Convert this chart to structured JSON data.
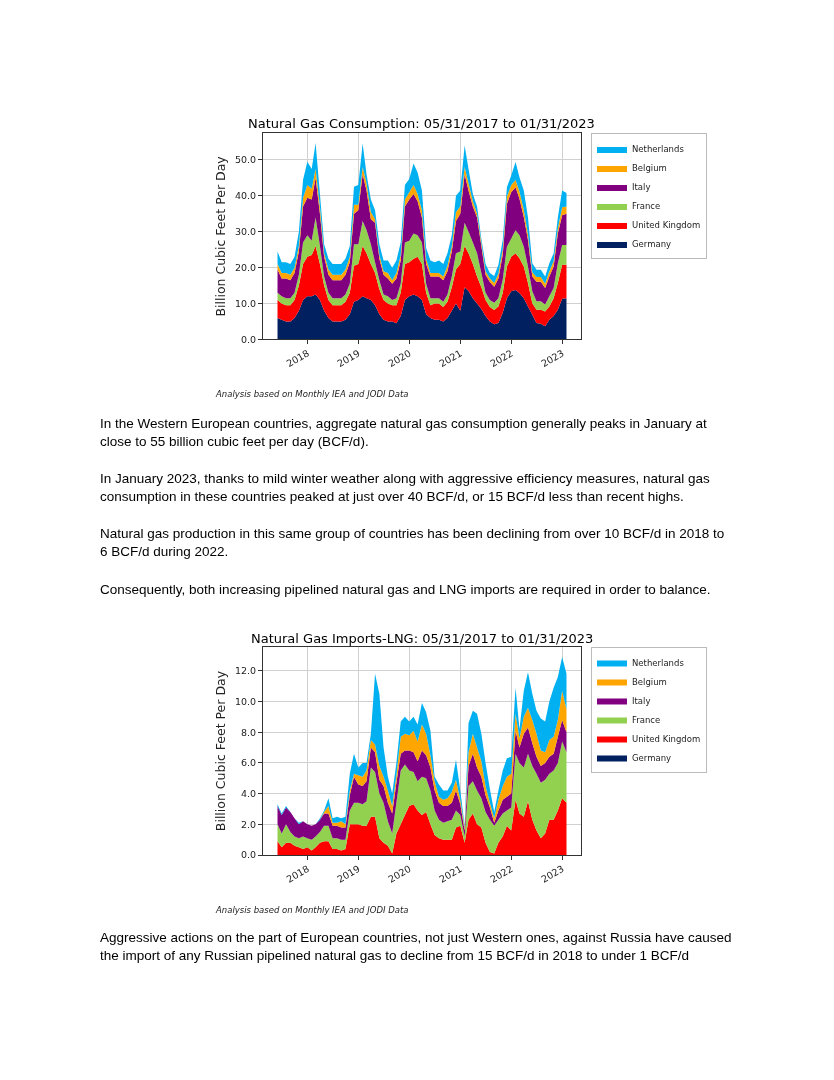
{
  "chart_data": [
    {
      "type": "area",
      "stacked": true,
      "title": "Natural Gas Consumption: 05/31/2017 to 01/31/2023",
      "ylabel": "Billion Cubic Feet Per Day",
      "x": [
        "2017-05-31",
        "2017-06-30",
        "2017-07-31",
        "2017-08-31",
        "2017-09-30",
        "2017-10-31",
        "2017-11-30",
        "2017-12-31",
        "2018-01-31",
        "2018-02-28",
        "2018-03-31",
        "2018-04-30",
        "2018-05-31",
        "2018-06-30",
        "2018-07-31",
        "2018-08-31",
        "2018-09-30",
        "2018-10-31",
        "2018-11-30",
        "2018-12-31",
        "2019-01-31",
        "2019-02-28",
        "2019-03-31",
        "2019-04-30",
        "2019-05-31",
        "2019-06-30",
        "2019-07-31",
        "2019-08-31",
        "2019-09-30",
        "2019-10-31",
        "2019-11-30",
        "2019-12-31",
        "2020-01-31",
        "2020-02-29",
        "2020-03-31",
        "2020-04-30",
        "2020-05-31",
        "2020-06-30",
        "2020-07-31",
        "2020-08-31",
        "2020-09-30",
        "2020-10-31",
        "2020-11-30",
        "2020-12-31",
        "2021-01-31",
        "2021-02-28",
        "2021-03-31",
        "2021-04-30",
        "2021-05-31",
        "2021-06-30",
        "2021-07-31",
        "2021-08-31",
        "2021-09-30",
        "2021-10-31",
        "2021-11-30",
        "2021-12-31",
        "2022-01-31",
        "2022-02-28",
        "2022-03-31",
        "2022-04-30",
        "2022-05-31",
        "2022-06-30",
        "2022-07-31",
        "2022-08-31",
        "2022-09-30",
        "2022-10-31",
        "2022-11-30",
        "2022-12-31",
        "2023-01-31"
      ],
      "series": [
        {
          "name": "Germany",
          "color": "#002060",
          "values": [
            6,
            5.5,
            5,
            5,
            6,
            8,
            11,
            12,
            12,
            12.5,
            11,
            8,
            6,
            5,
            5,
            5,
            5.5,
            7,
            10.5,
            11,
            12,
            11.5,
            11,
            9.5,
            7,
            5.5,
            5,
            5,
            4.5,
            6.5,
            11,
            12,
            12.5,
            12,
            11,
            7,
            6,
            5.5,
            5.5,
            5,
            6,
            8,
            10,
            8,
            14.5,
            13.5,
            11.5,
            10,
            8.5,
            6.5,
            5,
            4.2,
            4.6,
            7.4,
            11.5,
            13.4,
            13.8,
            12.9,
            11.5,
            9.2,
            6.9,
            4.6,
            4.4,
            3.7,
            5.5,
            6.5,
            8.3,
            11.3,
            11.5
          ]
        },
        {
          "name": "United Kingdom",
          "color": "#ff0000",
          "values": [
            5,
            4.5,
            4.5,
            4.5,
            5,
            7,
            10,
            11,
            11.5,
            13.5,
            10,
            7,
            5,
            4.5,
            4.5,
            4.5,
            5,
            6,
            10,
            10,
            14,
            12.5,
            10,
            9,
            7,
            5.5,
            5,
            4.5,
            5,
            6.5,
            10,
            9.5,
            10,
            11,
            10,
            6,
            3.5,
            4.5,
            4.5,
            4,
            4.5,
            6.5,
            9.5,
            13,
            11.5,
            10.5,
            9.5,
            7.5,
            6,
            4.5,
            4,
            4,
            4.6,
            5.5,
            8.8,
            9.6,
            10.2,
            9.7,
            8.8,
            6.5,
            3.2,
            3.7,
            3.9,
            4.1,
            3.7,
            5,
            7.4,
            9.5,
            9.3
          ]
        },
        {
          "name": "France",
          "color": "#92d050",
          "values": [
            2,
            2,
            2,
            2,
            2,
            3,
            6,
            6,
            4,
            8,
            5,
            2.5,
            2,
            2,
            2,
            2,
            2,
            2.5,
            6,
            5.5,
            7,
            6.5,
            5.5,
            3,
            2.5,
            1.5,
            2,
            1.5,
            2,
            2.5,
            6,
            6,
            7,
            6,
            6,
            2.5,
            2,
            1.5,
            1.5,
            1.5,
            2,
            3,
            4.5,
            3.5,
            6.5,
            6,
            6,
            6.5,
            4,
            2,
            2,
            2,
            2.3,
            3.7,
            5.5,
            5.1,
            6.4,
            6.4,
            5.5,
            4.6,
            3.3,
            2.3,
            2.3,
            1.9,
            2.8,
            2.8,
            5.5,
            5.5,
            5.5
          ]
        },
        {
          "name": "Italy",
          "color": "#800080",
          "values": [
            6.5,
            5,
            5.5,
            5,
            5.5,
            6.5,
            10,
            10.5,
            11.5,
            11,
            9,
            5.5,
            5,
            5,
            5,
            5,
            5.5,
            6,
            8.5,
            9.5,
            13,
            11,
            7,
            11,
            6,
            5.5,
            5,
            4.5,
            5.5,
            6.5,
            10,
            11.5,
            11,
            9.5,
            7,
            5.5,
            6,
            6,
            6,
            6,
            6.5,
            7,
            9,
            10.5,
            13.5,
            11.5,
            10,
            10,
            7.5,
            5,
            5,
            4.5,
            5.5,
            7,
            12,
            12.9,
            12,
            10.2,
            8.3,
            7.4,
            4.1,
            5.5,
            5.5,
            4.6,
            5.5,
            6,
            8.3,
            8.3,
            8.7
          ]
        },
        {
          "name": "Belgium",
          "color": "#ffa500",
          "values": [
            1.5,
            1.5,
            1.5,
            1.5,
            1.5,
            1.5,
            2.5,
            3.5,
            3,
            2.5,
            2,
            1,
            1.5,
            1.5,
            1.5,
            1.5,
            1.5,
            1.5,
            2.5,
            1.5,
            2,
            2,
            2,
            1,
            1,
            1,
            1.5,
            1,
            1.5,
            1.5,
            2,
            2,
            2.5,
            2,
            2,
            1.5,
            1,
            1,
            1,
            1,
            1.5,
            1.5,
            2.5,
            2,
            2,
            2,
            1.5,
            1,
            1,
            1,
            1,
            1,
            1.3,
            1.5,
            2,
            2,
            2,
            2,
            2,
            1.5,
            1.2,
            1.3,
            1.3,
            1.2,
            1.5,
            1.5,
            1.5,
            2.2,
            2
          ]
        },
        {
          "name": "Netherlands",
          "color": "#00b0f0",
          "values": [
            3.5,
            3,
            3,
            3,
            3,
            4,
            5,
            6.5,
            5.5,
            7.2,
            3.5,
            2.5,
            3,
            3,
            3,
            3,
            3,
            3,
            5,
            5.5,
            6.6,
            2.5,
            3.5,
            2.5,
            3,
            3,
            3.5,
            3.5,
            3.5,
            3.5,
            4,
            3.7,
            6,
            6,
            5.5,
            3,
            3.5,
            3,
            3.5,
            3.5,
            3.5,
            3,
            4.5,
            4.5,
            6,
            4,
            2,
            2,
            1,
            2,
            1.5,
            2,
            2.5,
            2.6,
            2.6,
            2.7,
            5,
            4,
            5.4,
            4.8,
            2.5,
            2,
            2,
            2,
            2.2,
            2.2,
            3,
            4.7,
            3.8
          ]
        }
      ],
      "xlim": [
        "2017-02-16",
        "2023-05-15"
      ],
      "xticks": [
        "2018",
        "2019",
        "2020",
        "2021",
        "2022",
        "2023"
      ],
      "ylim": [
        0,
        57.4
      ],
      "yticks": [
        {
          "value": 0,
          "label": "0.0"
        },
        {
          "value": 10,
          "label": "10.0"
        },
        {
          "value": 20,
          "label": "20.0"
        },
        {
          "value": 30,
          "label": "30.0"
        },
        {
          "value": 40,
          "label": "40.0"
        },
        {
          "value": 50,
          "label": "50.0"
        }
      ],
      "grid": true,
      "legend": "right",
      "annotations": [
        "Analysis based on Monthly IEA and JODI Data",
        "In the Western European countries, aggregate natural gas consumption generally peaks in January at close to 55 billion cubic feet per day (BCF/d).",
        "In January 2023, thanks to mild winter weather along with aggressive efficiency measures, natural gas consumption in these countries peaked at just over 40 BCF/d, or 15 BCF/d less than recent highs.",
        "Natural gas production in this same group of countries has been declining from over 10 BCF/d in 2018 to 6 BCF/d during 2022.",
        "Consequently, both increasing pipelined natural gas and LNG imports are required in order to balance."
      ]
    },
    {
      "type": "area",
      "stacked": true,
      "title": "Natural Gas Imports-LNG: 05/31/2017 to 01/31/2023",
      "ylabel": "Billion Cubic Feet Per Day",
      "x": [
        "2017-05-31",
        "2017-06-30",
        "2017-07-31",
        "2017-08-31",
        "2017-09-30",
        "2017-10-31",
        "2017-11-30",
        "2017-12-31",
        "2018-01-31",
        "2018-02-28",
        "2018-03-31",
        "2018-04-30",
        "2018-05-31",
        "2018-06-30",
        "2018-07-31",
        "2018-08-31",
        "2018-09-30",
        "2018-10-31",
        "2018-11-30",
        "2018-12-31",
        "2019-01-31",
        "2019-02-28",
        "2019-03-31",
        "2019-04-30",
        "2019-05-31",
        "2019-06-30",
        "2019-07-31",
        "2019-08-31",
        "2019-09-30",
        "2019-10-31",
        "2019-11-30",
        "2019-12-31",
        "2020-01-31",
        "2020-02-29",
        "2020-03-31",
        "2020-04-30",
        "2020-05-31",
        "2020-06-30",
        "2020-07-31",
        "2020-08-31",
        "2020-09-30",
        "2020-10-31",
        "2020-11-30",
        "2020-12-31",
        "2021-01-31",
        "2021-02-28",
        "2021-03-31",
        "2021-04-30",
        "2021-05-31",
        "2021-06-30",
        "2021-07-31",
        "2021-08-31",
        "2021-09-30",
        "2021-10-31",
        "2021-11-30",
        "2021-12-31",
        "2022-01-31",
        "2022-02-28",
        "2022-03-31",
        "2022-04-30",
        "2022-05-31",
        "2022-06-30",
        "2022-07-31",
        "2022-08-31",
        "2022-09-30",
        "2022-10-31",
        "2022-11-30",
        "2022-12-31",
        "2023-01-31"
      ],
      "series": [
        {
          "name": "Germany",
          "color": "#002060",
          "values": [
            null,
            null,
            null,
            null,
            null,
            null,
            null,
            null,
            null,
            null,
            null,
            null,
            null,
            null,
            null,
            null,
            null,
            null,
            null,
            null,
            null,
            null,
            null,
            null,
            null,
            null,
            null,
            null,
            null,
            null,
            null,
            null,
            null,
            null,
            null,
            null,
            null,
            null,
            null,
            null,
            null,
            null,
            null,
            null,
            null,
            null,
            null,
            null,
            null,
            null,
            null,
            null,
            null,
            null,
            null,
            null,
            null,
            null,
            null,
            null,
            null,
            null,
            null,
            null,
            null,
            null,
            null,
            null,
            null
          ]
        },
        {
          "name": "United Kingdom",
          "color": "#ff0000",
          "values": [
            0.9,
            0.5,
            0.8,
            0.8,
            0.6,
            0.5,
            0.4,
            0.5,
            0.3,
            0.5,
            0.8,
            0.9,
            0.9,
            0.4,
            0.4,
            0.3,
            0.4,
            2.0,
            2.0,
            2.0,
            1.9,
            1.9,
            2.5,
            2.5,
            1.1,
            0.8,
            0.6,
            0.1,
            1.4,
            2.0,
            2.6,
            3.2,
            3.3,
            2.9,
            2.6,
            2.8,
            2.0,
            1.3,
            1.1,
            1.0,
            1.0,
            1.0,
            1.8,
            1.9,
            0.8,
            2.3,
            2.7,
            2.0,
            1.8,
            0.8,
            0.2,
            0.1,
            0.8,
            1.2,
            1.9,
            1.6,
            3.6,
            2.7,
            2.5,
            3.5,
            2.3,
            1.6,
            1.1,
            1.4,
            2.3,
            2.3,
            2.9,
            3.7,
            3.4
          ]
        },
        {
          "name": "France",
          "color": "#92d050",
          "values": [
            1.1,
            0.9,
            1.2,
            0.7,
            0.6,
            0.6,
            0.8,
            0.6,
            0.7,
            0.7,
            0.7,
            1.0,
            1.0,
            0.7,
            0.7,
            0.7,
            0.6,
            0.9,
            1.4,
            1.4,
            1.4,
            1.6,
            3.2,
            2.9,
            2.9,
            2.6,
            1.6,
            1.3,
            2.0,
            3.5,
            3.3,
            2.3,
            2.1,
            1.9,
            2.5,
            2.2,
            2.2,
            1.6,
            1.2,
            1.1,
            1.2,
            1.3,
            1.1,
            0.7,
            0.4,
            2.2,
            2.1,
            2.2,
            1.9,
            2.0,
            2.1,
            1.8,
            1.5,
            1.5,
            1.0,
            1.5,
            3.0,
            3.3,
            3.2,
            3.1,
            3.5,
            3.7,
            3.6,
            3.5,
            3.0,
            3.2,
            3.1,
            3.7,
            3.3
          ]
        },
        {
          "name": "Italy",
          "color": "#800080",
          "values": [
            1.2,
            1.2,
            1.1,
            1.3,
            1.2,
            0.9,
            1.0,
            0.9,
            0.9,
            0.8,
            0.8,
            0.8,
            0.8,
            0.8,
            0.8,
            0.8,
            0.8,
            1.0,
            1.7,
            1.2,
            1.2,
            1.3,
            1.3,
            1.3,
            0.9,
            1.1,
            1.2,
            1.3,
            1.3,
            1.1,
            0.9,
            1.3,
            1.3,
            1.3,
            1.7,
            1.5,
            1.5,
            1.3,
            1.1,
            1.1,
            1.0,
            1.1,
            1.3,
            0.7,
            0.4,
            1.3,
            1.8,
            1.5,
            1.4,
            1.1,
            0.8,
            0.2,
            0.6,
            0.9,
            0.9,
            0.9,
            1.5,
            1.0,
            2.2,
            1.7,
            1.5,
            1.1,
            1.1,
            1.1,
            1.1,
            1.1,
            1.7,
            1.4,
            1.3
          ]
        },
        {
          "name": "Belgium",
          "color": "#ffa500",
          "values": [
            0,
            0,
            0,
            0,
            0,
            0,
            0,
            0,
            0,
            0,
            0,
            0.1,
            0.5,
            0.2,
            0.2,
            0.4,
            0.2,
            0.3,
            0.2,
            0.6,
            0.6,
            0.7,
            0.5,
            0.5,
            0.9,
            0.6,
            0.8,
            0.5,
            0.5,
            1.1,
            1.1,
            1.0,
            1.4,
            1.3,
            1.7,
            1.4,
            0.8,
            0.6,
            0.4,
            0.4,
            0.5,
            0.7,
            0.7,
            0.3,
            0.2,
            0.9,
            1.3,
            1.3,
            1.0,
            0.6,
            0.3,
            0.3,
            0.7,
            0.9,
            1.3,
            1.3,
            1.1,
            0.6,
            1.1,
            1.3,
            1.5,
            1.5,
            1.0,
            0.7,
            1.1,
            1.1,
            1.1,
            1.9,
            1.5
          ]
        },
        {
          "name": "Netherlands",
          "color": "#00b0f0",
          "values": [
            0.1,
            0.1,
            0.1,
            0,
            0,
            0.1,
            0,
            0,
            0,
            0,
            0.1,
            0.1,
            0.5,
            0.3,
            0.4,
            0.2,
            0.5,
            1.1,
            1.3,
            0.5,
            0.9,
            0.5,
            0.4,
            4.6,
            4.7,
            1.9,
            0.9,
            0.8,
            0.8,
            1.0,
            1.1,
            0.9,
            0.9,
            1.1,
            1.4,
            1.4,
            1.6,
            0.3,
            0.8,
            0.6,
            0.5,
            0.6,
            1.3,
            0.6,
            0.1,
            1.9,
            1.5,
            2.2,
            1.8,
            1.5,
            0.9,
            0.4,
            0.6,
            1.0,
            1.2,
            1.1,
            1.7,
            0.6,
            1.7,
            2.3,
            1.7,
            1.5,
            2.1,
            2.0,
            2.5,
            3.2,
            2.8,
            2.2,
            2.3
          ]
        }
      ],
      "xlim": [
        "2017-02-16",
        "2023-05-15"
      ],
      "xticks": [
        "2018",
        "2019",
        "2020",
        "2021",
        "2022",
        "2023"
      ],
      "ylim": [
        0,
        13.55
      ],
      "yticks": [
        {
          "value": 0,
          "label": "0.0"
        },
        {
          "value": 2,
          "label": "2.0"
        },
        {
          "value": 4,
          "label": "4.0"
        },
        {
          "value": 6,
          "label": "6.0"
        },
        {
          "value": 8,
          "label": "8.0"
        },
        {
          "value": 10,
          "label": "10.0"
        },
        {
          "value": 12,
          "label": "12.0"
        }
      ],
      "grid": true,
      "legend": "right",
      "annotations": [
        "Analysis based on Monthly IEA and JODI Data",
        "Aggressive actions on the part of European countries, not just Western ones, against Russia have caused the import of any Russian pipelined natural gas to decline from 15 BCF/d in 2018 to under 1 BCF/d"
      ]
    }
  ]
}
